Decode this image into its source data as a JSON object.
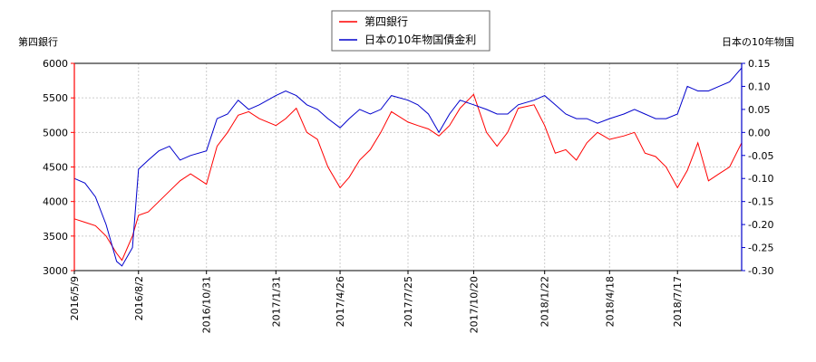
{
  "chart_data": {
    "type": "line",
    "left_axis": {
      "label": "第四銀行",
      "ylim": [
        3000,
        6000
      ],
      "ticks": [
        "3000",
        "3500",
        "4000",
        "4500",
        "5000",
        "5500",
        "6000"
      ],
      "color": "#ff0000"
    },
    "right_axis": {
      "label": "日本の10年物国",
      "ylim": [
        -0.3,
        0.15
      ],
      "ticks": [
        "-0.30",
        "-0.25",
        "-0.20",
        "-0.15",
        "-0.10",
        "-0.05",
        "0.00",
        "0.05",
        "0.10",
        "0.15"
      ],
      "color": "#0000cc"
    },
    "x_ticks": [
      "2016/5/9",
      "2016/8/2",
      "2016/10/31",
      "2017/1/31",
      "2017/4/26",
      "2017/7/25",
      "2017/10/20",
      "2018/1/22",
      "2018/4/18",
      "2018/7/17"
    ],
    "x_range": [
      "2016/5/9",
      "2018/10/10"
    ],
    "grid": true,
    "legend_position": "top-center",
    "series": [
      {
        "name": "第四銀行",
        "axis": "left",
        "color": "#ff0000",
        "x": [
          "2016/5/9",
          "2016/5/23",
          "2016/6/6",
          "2016/6/20",
          "2016/7/4",
          "2016/7/11",
          "2016/7/25",
          "2016/8/2",
          "2016/8/15",
          "2016/8/29",
          "2016/9/12",
          "2016/9/26",
          "2016/10/10",
          "2016/10/31",
          "2016/11/14",
          "2016/11/28",
          "2016/12/12",
          "2016/12/26",
          "2017/1/9",
          "2017/1/31",
          "2017/2/13",
          "2017/2/27",
          "2017/3/13",
          "2017/3/27",
          "2017/4/10",
          "2017/4/26",
          "2017/5/8",
          "2017/5/22",
          "2017/6/5",
          "2017/6/19",
          "2017/7/3",
          "2017/7/25",
          "2017/8/7",
          "2017/8/21",
          "2017/9/4",
          "2017/9/18",
          "2017/10/2",
          "2017/10/20",
          "2017/11/6",
          "2017/11/20",
          "2017/12/4",
          "2017/12/18",
          "2018/1/8",
          "2018/1/22",
          "2018/2/5",
          "2018/2/19",
          "2018/3/5",
          "2018/3/19",
          "2018/4/2",
          "2018/4/18",
          "2018/5/7",
          "2018/5/21",
          "2018/6/4",
          "2018/6/18",
          "2018/7/2",
          "2018/7/17",
          "2018/7/30",
          "2018/8/13",
          "2018/8/27",
          "2018/9/10",
          "2018/9/24",
          "2018/10/10"
        ],
        "values": [
          3750,
          3700,
          3650,
          3500,
          3250,
          3150,
          3500,
          3800,
          3850,
          4000,
          4150,
          4300,
          4400,
          4250,
          4800,
          5000,
          5250,
          5300,
          5200,
          5100,
          5200,
          5350,
          5000,
          4900,
          4500,
          4200,
          4350,
          4600,
          4750,
          5000,
          5300,
          5150,
          5100,
          5050,
          4950,
          5100,
          5350,
          5550,
          5000,
          4800,
          5000,
          5350,
          5400,
          5100,
          4700,
          4750,
          4600,
          4850,
          5000,
          4900,
          4950,
          5000,
          4700,
          4650,
          4500,
          4200,
          4450,
          4850,
          4300,
          4400,
          4500,
          4850
        ]
      },
      {
        "name": "日本の10年物国債金利",
        "axis": "right",
        "color": "#0000cc",
        "x": [
          "2016/5/9",
          "2016/5/23",
          "2016/6/6",
          "2016/6/20",
          "2016/7/4",
          "2016/7/11",
          "2016/7/25",
          "2016/8/2",
          "2016/8/15",
          "2016/8/29",
          "2016/9/12",
          "2016/9/26",
          "2016/10/10",
          "2016/10/31",
          "2016/11/14",
          "2016/11/28",
          "2016/12/12",
          "2016/12/26",
          "2017/1/9",
          "2017/1/31",
          "2017/2/13",
          "2017/2/27",
          "2017/3/13",
          "2017/3/27",
          "2017/4/10",
          "2017/4/26",
          "2017/5/8",
          "2017/5/22",
          "2017/6/5",
          "2017/6/19",
          "2017/7/3",
          "2017/7/25",
          "2017/8/7",
          "2017/8/21",
          "2017/9/4",
          "2017/9/18",
          "2017/10/2",
          "2017/10/20",
          "2017/11/6",
          "2017/11/20",
          "2017/12/4",
          "2017/12/18",
          "2018/1/8",
          "2018/1/22",
          "2018/2/5",
          "2018/2/19",
          "2018/3/5",
          "2018/3/19",
          "2018/4/2",
          "2018/4/18",
          "2018/5/7",
          "2018/5/21",
          "2018/6/4",
          "2018/6/18",
          "2018/7/2",
          "2018/7/17",
          "2018/7/30",
          "2018/8/13",
          "2018/8/27",
          "2018/9/10",
          "2018/9/24",
          "2018/10/10"
        ],
        "values": [
          -0.1,
          -0.11,
          -0.14,
          -0.2,
          -0.28,
          -0.29,
          -0.25,
          -0.08,
          -0.06,
          -0.04,
          -0.03,
          -0.06,
          -0.05,
          -0.04,
          0.03,
          0.04,
          0.07,
          0.05,
          0.06,
          0.08,
          0.09,
          0.08,
          0.06,
          0.05,
          0.03,
          0.01,
          0.03,
          0.05,
          0.04,
          0.05,
          0.08,
          0.07,
          0.06,
          0.04,
          0.0,
          0.04,
          0.07,
          0.06,
          0.05,
          0.04,
          0.04,
          0.06,
          0.07,
          0.08,
          0.06,
          0.04,
          0.03,
          0.03,
          0.02,
          0.03,
          0.04,
          0.05,
          0.04,
          0.03,
          0.03,
          0.04,
          0.1,
          0.09,
          0.09,
          0.1,
          0.11,
          0.14
        ]
      }
    ]
  }
}
